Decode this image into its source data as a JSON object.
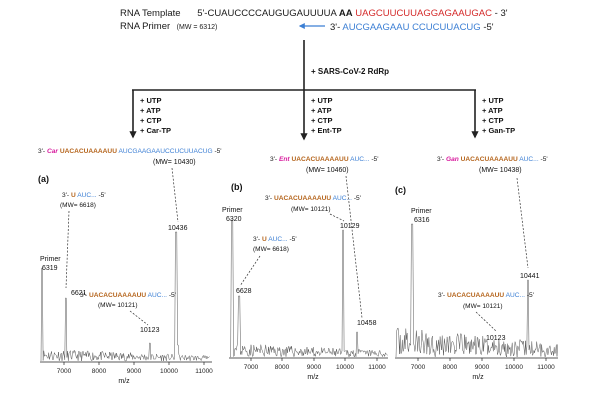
{
  "template": {
    "label": "RNA Template",
    "prefix": "5'-CUAUCCCCAUGUGAUUUUA",
    "bold": "AA",
    "red": "UAGCUUCUUAGGAGAAUGAC",
    "suffix": "- 3'"
  },
  "primer": {
    "label": "RNA Primer",
    "mw": "(MW = 6312)",
    "prefix": "3'-",
    "seq": "AUCGAAGAAU CCUCUUACUG",
    "suffix": "-5'"
  },
  "enzyme": "+ SARS-CoV-2 RdRp",
  "branches": [
    {
      "items": [
        "+ UTP",
        "+ ATP",
        "+ CTP",
        "+ Car-TP"
      ]
    },
    {
      "items": [
        "+ UTP",
        "+ ATP",
        "+ CTP",
        "+ Ent-TP"
      ]
    },
    {
      "items": [
        "+ UTP",
        "+ ATP",
        "+ CTP",
        "+ Gan-TP"
      ]
    }
  ],
  "products": [
    {
      "pre": "3'-",
      "nuc": "Car",
      "ext": "UACACUAAAAUU",
      "tail": "AUCGAAGAAUCCUCUUACUG",
      "end": "-5'",
      "mw": "(MW= 10430)"
    },
    {
      "pre": "3'-",
      "nuc": "Ent",
      "ext": "UACACUAAAAUU",
      "tail": "AUC...",
      "end": "-5'",
      "mw": "(MW= 10460)"
    },
    {
      "pre": "3'-",
      "nuc": "Gan",
      "ext": "UACACUAAAAUU",
      "tail": "AUC...",
      "end": "-5'",
      "mw": "(MW= 10438)"
    }
  ],
  "panels": [
    {
      "label": "(a)",
      "primer_peak": {
        "name": "Primer",
        "value": "6319"
      },
      "peaks": [
        "6621",
        "10436",
        "10123"
      ],
      "ann_u": {
        "pre": "3'-",
        "u": "U",
        "tail": "AUC...",
        "end": "-5'",
        "mw": "(MW= 6618)"
      },
      "ann_long": {
        "pre": "3'-",
        "ext": "UACACUAAAAUU",
        "tail": "AUC...",
        "end": "-5'",
        "mw": "(MW= 10121)"
      }
    },
    {
      "label": "(b)",
      "primer_peak": {
        "name": "Primer",
        "value": "6320"
      },
      "peaks": [
        "6628",
        "10129",
        "10458"
      ],
      "ann_u": {
        "pre": "3'-",
        "u": "U",
        "tail": "AUC...",
        "end": "-5'",
        "mw": "(MW= 6618)"
      },
      "ann_long": {
        "pre": "3'-",
        "ext": "UACACUAAAAUU",
        "tail": "AUC...",
        "end": "-5'",
        "mw": "(MW= 10121)"
      }
    },
    {
      "label": "(c)",
      "primer_peak": {
        "name": "Primer",
        "value": "6316"
      },
      "peaks": [
        "10441",
        "10123"
      ],
      "ann_long": {
        "pre": "3'-",
        "ext": "UACACUAAAAUU",
        "tail": "AUC...",
        "end": "-5'",
        "mw": "(MW= 10121)"
      }
    }
  ],
  "axis": {
    "ticks": [
      "7000",
      "8000",
      "9000",
      "10000",
      "11000"
    ],
    "xlabel": "m/z"
  }
}
